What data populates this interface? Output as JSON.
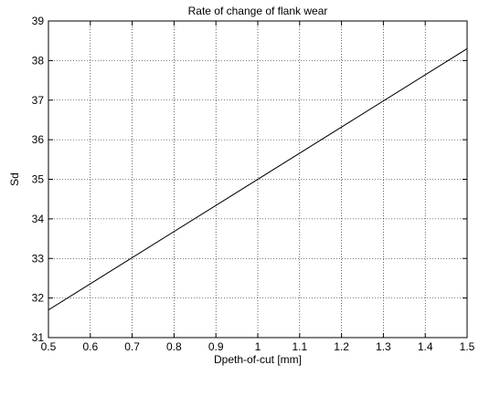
{
  "chart_data": {
    "type": "line",
    "title": "Rate of change of flank wear",
    "xlabel": "Dpeth-of-cut [mm]",
    "ylabel": "Sd",
    "xlim": [
      0.5,
      1.5
    ],
    "ylim": [
      31,
      39
    ],
    "xticks": [
      "0.5",
      "0.6",
      "0.7",
      "0.8",
      "0.9",
      "1",
      "1.1",
      "1.2",
      "1.3",
      "1.4",
      "1.5"
    ],
    "yticks": [
      "31",
      "32",
      "33",
      "34",
      "35",
      "36",
      "37",
      "38",
      "39"
    ],
    "grid": true,
    "series": [
      {
        "color": "#000000",
        "x": [
          0.5,
          1.5
        ],
        "y": [
          31.7,
          38.3
        ]
      }
    ]
  }
}
